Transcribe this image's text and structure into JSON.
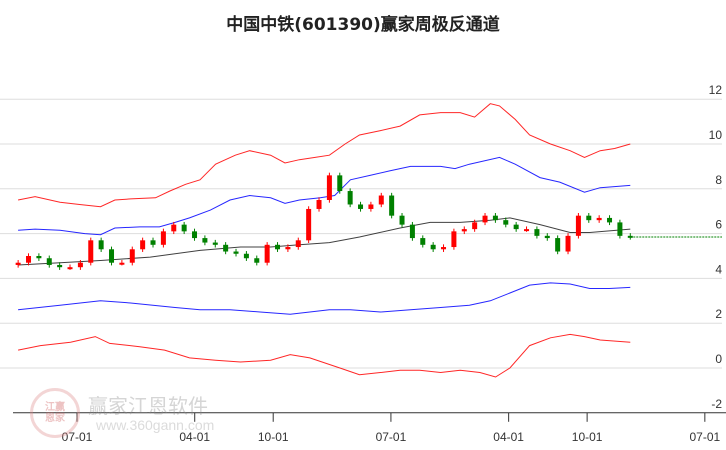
{
  "chart_data": {
    "type": "line",
    "title": "中国中铁(601390)赢家周极反通道",
    "x_unit": "months since first 07-01 tick",
    "xlim": [
      -4.5,
      48.5
    ],
    "ylim": [
      -2,
      13
    ],
    "yticks": [
      -2,
      0,
      2,
      4,
      6,
      8,
      10,
      12
    ],
    "xticks": [
      {
        "t": 0,
        "label": "07-01"
      },
      {
        "t": 9,
        "label": "04-01"
      },
      {
        "t": 15,
        "label": "10-01"
      },
      {
        "t": 24,
        "label": "07-01"
      },
      {
        "t": 33,
        "label": "04-01"
      },
      {
        "t": 39,
        "label": "10-01"
      },
      {
        "t": 48,
        "label": "07-01"
      }
    ],
    "candles": {
      "t_range": [
        -4.5,
        42.3
      ],
      "closes": [
        4.7,
        5.0,
        4.9,
        4.6,
        4.5,
        4.5,
        4.7,
        5.7,
        5.3,
        4.7,
        4.7,
        5.3,
        5.7,
        5.5,
        6.1,
        6.4,
        6.1,
        5.8,
        5.6,
        5.5,
        5.2,
        5.1,
        4.9,
        4.7,
        5.5,
        5.3,
        5.4,
        5.7,
        7.1,
        7.5,
        8.6,
        7.9,
        7.3,
        7.1,
        7.3,
        7.7,
        6.8,
        6.4,
        5.8,
        5.5,
        5.3,
        5.4,
        6.1,
        6.2,
        6.5,
        6.8,
        6.6,
        6.4,
        6.2,
        6.2,
        5.9,
        5.8,
        5.2,
        5.9,
        6.8,
        6.6,
        6.7,
        6.5,
        5.9,
        5.85
      ]
    },
    "last_price": 5.85,
    "series": [
      {
        "name": "upper-red",
        "color": "#ff0000",
        "points": [
          [
            -4.5,
            7.5
          ],
          [
            -3.2,
            7.65
          ],
          [
            -1.3,
            7.4
          ],
          [
            0.2,
            7.3
          ],
          [
            1.8,
            7.2
          ],
          [
            2.9,
            7.5
          ],
          [
            4.1,
            7.55
          ],
          [
            6.0,
            7.6
          ],
          [
            7.1,
            7.9
          ],
          [
            8.3,
            8.2
          ],
          [
            9.4,
            8.4
          ],
          [
            10.6,
            9.1
          ],
          [
            12.1,
            9.5
          ],
          [
            13.2,
            9.7
          ],
          [
            14.8,
            9.5
          ],
          [
            15.9,
            9.15
          ],
          [
            17.0,
            9.3
          ],
          [
            18.2,
            9.4
          ],
          [
            19.3,
            9.5
          ],
          [
            20.5,
            10.0
          ],
          [
            21.6,
            10.4
          ],
          [
            23.2,
            10.6
          ],
          [
            24.7,
            10.8
          ],
          [
            26.2,
            11.3
          ],
          [
            27.8,
            11.4
          ],
          [
            29.3,
            11.4
          ],
          [
            30.4,
            11.2
          ],
          [
            31.6,
            11.8
          ],
          [
            32.3,
            11.7
          ],
          [
            33.5,
            11.1
          ],
          [
            34.6,
            10.4
          ],
          [
            36.2,
            10.0
          ],
          [
            37.7,
            9.7
          ],
          [
            38.8,
            9.4
          ],
          [
            40.0,
            9.7
          ],
          [
            41.1,
            9.8
          ],
          [
            42.3,
            10.0
          ]
        ]
      },
      {
        "name": "upper-blue",
        "color": "#0000ff",
        "points": [
          [
            -4.5,
            6.15
          ],
          [
            -3.2,
            6.2
          ],
          [
            -1.3,
            6.15
          ],
          [
            0.6,
            6.0
          ],
          [
            1.8,
            5.95
          ],
          [
            2.9,
            6.25
          ],
          [
            4.8,
            6.3
          ],
          [
            6.3,
            6.3
          ],
          [
            7.5,
            6.5
          ],
          [
            8.6,
            6.7
          ],
          [
            10.2,
            7.05
          ],
          [
            11.7,
            7.5
          ],
          [
            13.2,
            7.7
          ],
          [
            14.8,
            7.6
          ],
          [
            15.9,
            7.35
          ],
          [
            17.0,
            7.5
          ],
          [
            18.6,
            7.6
          ],
          [
            19.7,
            7.7
          ],
          [
            20.9,
            8.4
          ],
          [
            22.4,
            8.6
          ],
          [
            23.9,
            8.8
          ],
          [
            25.5,
            9.0
          ],
          [
            27.8,
            9.0
          ],
          [
            28.9,
            8.9
          ],
          [
            30.0,
            9.1
          ],
          [
            32.3,
            9.4
          ],
          [
            33.5,
            9.1
          ],
          [
            35.4,
            8.5
          ],
          [
            36.9,
            8.3
          ],
          [
            38.8,
            7.85
          ],
          [
            40.0,
            8.05
          ],
          [
            42.3,
            8.15
          ]
        ]
      },
      {
        "name": "moving-average",
        "color": "#000000",
        "points": [
          [
            -4.5,
            4.6
          ],
          [
            -1.3,
            4.7
          ],
          [
            1.8,
            4.8
          ],
          [
            5.6,
            4.95
          ],
          [
            9.4,
            5.25
          ],
          [
            12.5,
            5.4
          ],
          [
            14.8,
            5.4
          ],
          [
            17.0,
            5.5
          ],
          [
            19.3,
            5.6
          ],
          [
            21.6,
            5.85
          ],
          [
            24.7,
            6.25
          ],
          [
            27.0,
            6.5
          ],
          [
            29.3,
            6.5
          ],
          [
            31.6,
            6.6
          ],
          [
            33.1,
            6.7
          ],
          [
            35.4,
            6.4
          ],
          [
            37.7,
            6.05
          ],
          [
            39.2,
            6.05
          ],
          [
            42.3,
            6.2
          ]
        ]
      },
      {
        "name": "lower-blue",
        "color": "#0000ff",
        "points": [
          [
            -4.5,
            2.6
          ],
          [
            -1.3,
            2.8
          ],
          [
            1.8,
            3.0
          ],
          [
            4.1,
            2.9
          ],
          [
            7.5,
            2.7
          ],
          [
            9.4,
            2.6
          ],
          [
            11.7,
            2.6
          ],
          [
            14.0,
            2.5
          ],
          [
            16.3,
            2.4
          ],
          [
            17.8,
            2.5
          ],
          [
            19.3,
            2.6
          ],
          [
            20.9,
            2.6
          ],
          [
            23.2,
            2.5
          ],
          [
            25.5,
            2.6
          ],
          [
            27.8,
            2.7
          ],
          [
            30.0,
            2.8
          ],
          [
            31.6,
            3.0
          ],
          [
            33.1,
            3.35
          ],
          [
            34.6,
            3.7
          ],
          [
            36.2,
            3.8
          ],
          [
            37.7,
            3.75
          ],
          [
            39.2,
            3.55
          ],
          [
            40.7,
            3.55
          ],
          [
            42.3,
            3.6
          ]
        ]
      },
      {
        "name": "lower-red",
        "color": "#ff0000",
        "points": [
          [
            -4.5,
            0.8
          ],
          [
            -2.8,
            1.0
          ],
          [
            -0.5,
            1.15
          ],
          [
            1.4,
            1.4
          ],
          [
            2.5,
            1.1
          ],
          [
            4.8,
            0.95
          ],
          [
            6.7,
            0.8
          ],
          [
            8.6,
            0.45
          ],
          [
            10.6,
            0.35
          ],
          [
            12.5,
            0.27
          ],
          [
            14.8,
            0.35
          ],
          [
            16.3,
            0.6
          ],
          [
            17.8,
            0.45
          ],
          [
            20.1,
            0.0
          ],
          [
            21.6,
            -0.3
          ],
          [
            23.2,
            -0.2
          ],
          [
            24.7,
            -0.1
          ],
          [
            26.2,
            -0.1
          ],
          [
            27.8,
            -0.2
          ],
          [
            29.3,
            -0.1
          ],
          [
            30.8,
            -0.2
          ],
          [
            32.0,
            -0.4
          ],
          [
            33.1,
            0.0
          ],
          [
            34.6,
            1.0
          ],
          [
            36.2,
            1.35
          ],
          [
            37.7,
            1.5
          ],
          [
            38.8,
            1.4
          ],
          [
            40.0,
            1.25
          ],
          [
            42.3,
            1.15
          ]
        ]
      }
    ],
    "colors": {
      "up": "#ff0000",
      "down": "#008000",
      "grid": "#dddddd",
      "last_price": "#008000"
    }
  },
  "watermark": {
    "logo_chars": [
      "江",
      "赢",
      "恩",
      "家"
    ],
    "name": "赢家江恩软件",
    "url": "www.360gann.com"
  }
}
